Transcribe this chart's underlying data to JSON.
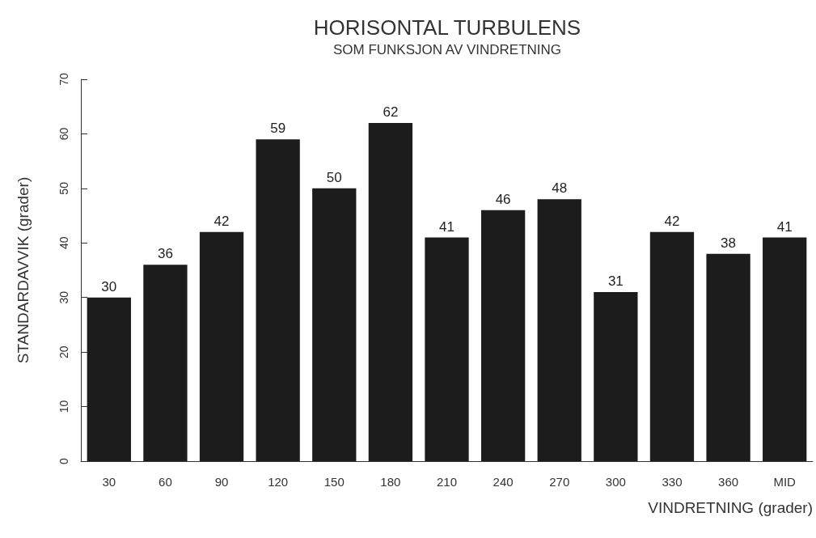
{
  "chart_data": {
    "type": "bar",
    "title": "HORISONTAL TURBULENS",
    "subtitle": "SOM FUNKSJON AV VINDRETNING",
    "xlabel": "VINDRETNING (grader)",
    "ylabel": "STANDARDAVVIK (grader)",
    "categories": [
      "30",
      "60",
      "90",
      "120",
      "150",
      "180",
      "210",
      "240",
      "270",
      "300",
      "330",
      "360",
      "MID"
    ],
    "values": [
      30,
      36,
      42,
      59,
      50,
      62,
      41,
      46,
      48,
      31,
      42,
      38,
      41
    ],
    "color": "#1c1c1c",
    "ylim": [
      0,
      70
    ],
    "yticks": [
      0,
      10,
      20,
      30,
      40,
      50,
      60,
      70
    ],
    "grid": false,
    "data_labels": true
  }
}
